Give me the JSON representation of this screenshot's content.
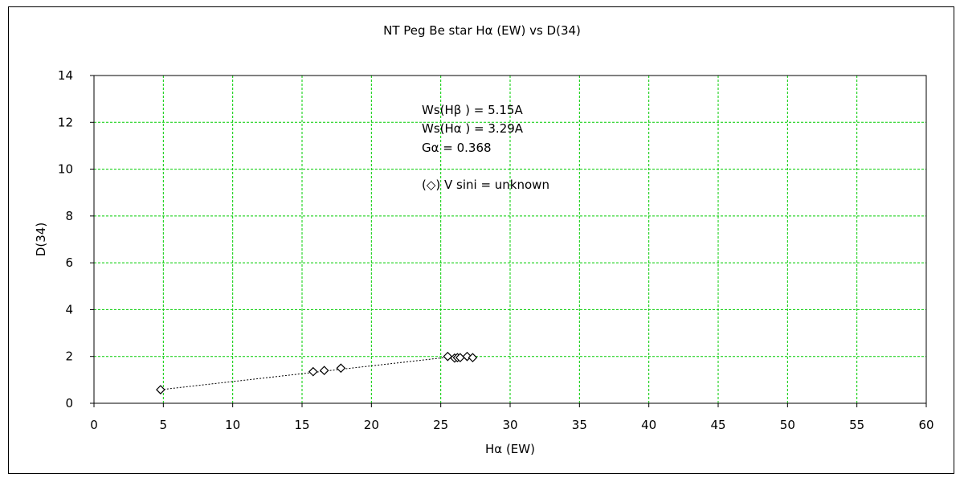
{
  "chart_data": {
    "type": "scatter",
    "title": "NT Peg    Be star    Hα (EW) vs D(34)",
    "xlabel": "Hα (EW)",
    "ylabel": "D(34)",
    "xlim": [
      0,
      60
    ],
    "ylim": [
      0,
      14
    ],
    "x_ticks": [
      0,
      5,
      10,
      15,
      20,
      25,
      30,
      35,
      40,
      45,
      50,
      55,
      60
    ],
    "y_ticks": [
      0,
      2,
      4,
      6,
      8,
      10,
      12,
      14
    ],
    "grid": true,
    "grid_color": "#00cc00",
    "marker": "diamond-open",
    "trendline": {
      "style": "dotted",
      "from": [
        4.8,
        0.58
      ],
      "to": [
        26.0,
        2.0
      ]
    },
    "points": [
      {
        "x": 4.8,
        "y": 0.58
      },
      {
        "x": 15.8,
        "y": 1.35
      },
      {
        "x": 16.6,
        "y": 1.4
      },
      {
        "x": 17.8,
        "y": 1.5
      },
      {
        "x": 25.5,
        "y": 2.0
      },
      {
        "x": 26.0,
        "y": 1.93
      },
      {
        "x": 26.2,
        "y": 1.95
      },
      {
        "x": 26.4,
        "y": 1.95
      },
      {
        "x": 26.9,
        "y": 2.0
      },
      {
        "x": 27.3,
        "y": 1.95
      }
    ],
    "annotations": [
      "Ws(Hβ ) = 5.15A",
      "Ws(Hα ) = 3.29A",
      "Gα = 0.368",
      "(◇) V sini = unknown"
    ]
  }
}
